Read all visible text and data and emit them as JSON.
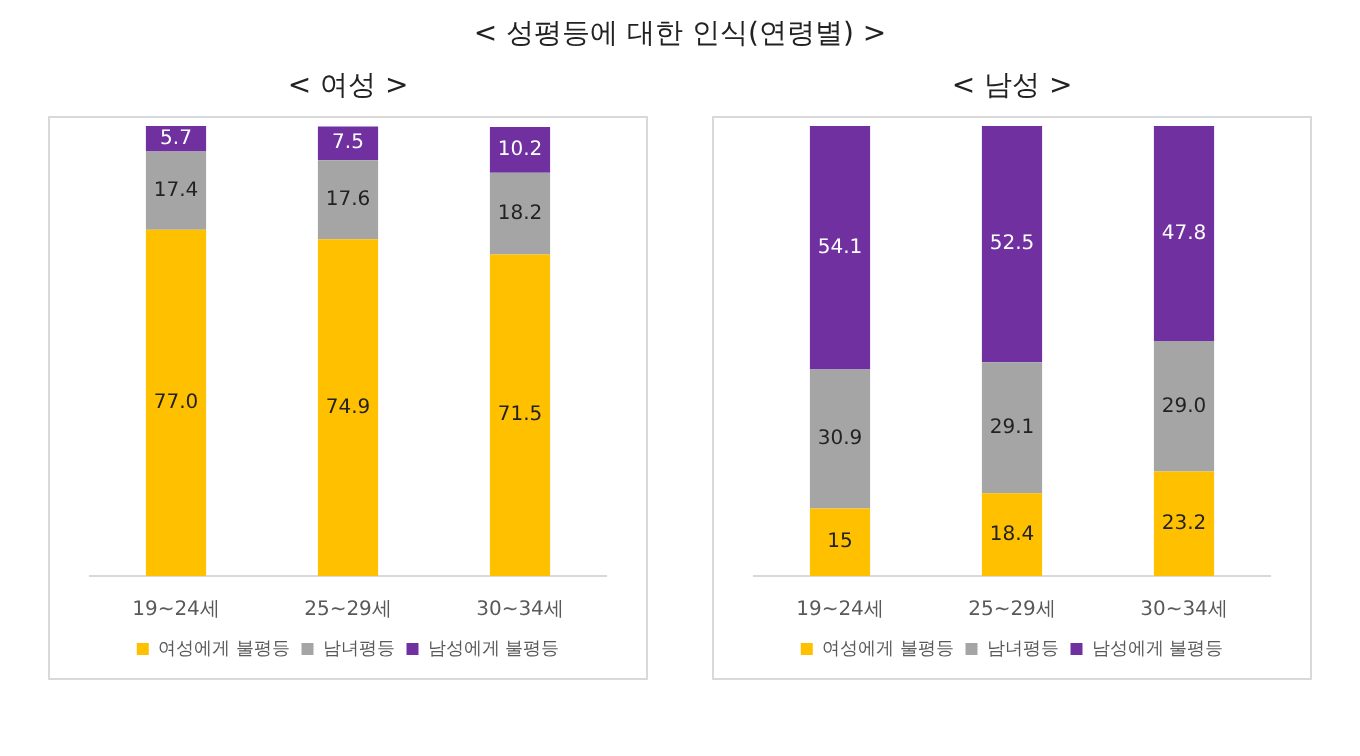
{
  "chart_data": [
    {
      "type": "bar",
      "title": "< 여성 >",
      "annotations": [
        "< 성평등에 대한 인식(연령별) >"
      ],
      "categories": [
        "19~24세",
        "25~29세",
        "30~34세"
      ],
      "stacked": true,
      "tick_labels": "x",
      "legend": "bottom",
      "series": [
        {
          "name": "여성에게 불평등",
          "color": "#ffc000",
          "values": [
            77.0,
            74.9,
            71.5
          ],
          "value_labels": [
            "77.0",
            "74.9",
            "71.5"
          ]
        },
        {
          "name": "남녀평등",
          "color": "#a5a5a5",
          "values": [
            17.4,
            17.6,
            18.2
          ],
          "value_labels": [
            "17.4",
            "17.6",
            "18.2"
          ]
        },
        {
          "name": "남성에게 불평등",
          "color": "#7030a0",
          "values": [
            5.7,
            7.5,
            10.2
          ],
          "value_labels": [
            "5.7",
            "7.5",
            "10.2"
          ]
        }
      ]
    },
    {
      "type": "bar",
      "title": "< 남성 >",
      "categories": [
        "19~24세",
        "25~29세",
        "30~34세"
      ],
      "stacked": true,
      "tick_labels": "x",
      "legend": "bottom",
      "series": [
        {
          "name": "여성에게 불평등",
          "color": "#ffc000",
          "values": [
            15,
            18.4,
            23.2
          ],
          "value_labels": [
            "15",
            "18.4",
            "23.2"
          ]
        },
        {
          "name": "남녀평등",
          "color": "#a5a5a5",
          "values": [
            30.9,
            29.1,
            29.0
          ],
          "value_labels": [
            "30.9",
            "29.1",
            "29.0"
          ]
        },
        {
          "name": "남성에게 불평등",
          "color": "#7030a0",
          "values": [
            54.1,
            52.5,
            47.8
          ],
          "value_labels": [
            "54.1",
            "52.5",
            "47.8"
          ]
        }
      ]
    }
  ]
}
